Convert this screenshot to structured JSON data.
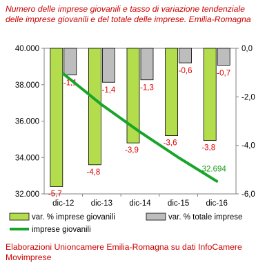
{
  "title_line1": "Numero delle imprese giovanili e tasso di variazione tendenziale",
  "title_line2": "delle imprese giovanili e del totale delle imprese. Emilia-Romagna",
  "source_line1": "Elaborazioni Unioncamere Emilia-Romagna su dati InfoCamere",
  "source_line2": "Movimprese",
  "colors": {
    "bar_giovanili": "#b3dd4d",
    "bar_totale": "#bdbdbd",
    "line_giovanili": "#18a52a",
    "data_label": "#e00000",
    "line_label": "#1a9a1a"
  },
  "chart_data": {
    "type": "bar",
    "categories": [
      "dic-12",
      "dic-13",
      "dic-14",
      "dic-15",
      "dic-16"
    ],
    "series": [
      {
        "name": "var. % imprese giovanili",
        "kind": "bar",
        "axis": "right",
        "values": [
          -5.7,
          -4.8,
          -3.9,
          -3.6,
          -3.8
        ],
        "labels": [
          "-5,7",
          "-4,8",
          "-3,9",
          "-3,6",
          "-3,8"
        ]
      },
      {
        "name": "var. % totale imprese",
        "kind": "bar",
        "axis": "right",
        "values": [
          -1.1,
          -1.4,
          -1.3,
          -0.6,
          -0.7
        ],
        "labels": [
          "-1,1",
          "-1,4",
          "-1,3",
          "-0,6",
          "-0,7"
        ]
      },
      {
        "name": "imprese giovanili",
        "kind": "line",
        "axis": "left",
        "values": [
          38600,
          36900,
          35400,
          34000,
          32694
        ],
        "last_label": "32.694"
      }
    ],
    "left_axis": {
      "ylim": [
        32000,
        40000
      ],
      "ticks": [
        32000,
        34000,
        36000,
        38000,
        40000
      ],
      "tick_labels": [
        "32.000",
        "34.000",
        "36.000",
        "38.000",
        "40.000"
      ]
    },
    "right_axis": {
      "ylim": [
        -6.0,
        0.0
      ],
      "ticks": [
        0.0,
        -2.0,
        -4.0,
        -6.0
      ],
      "tick_labels": [
        "0,0",
        "-2,0",
        "-4,0",
        "-6,0"
      ]
    },
    "legend_position": "bottom",
    "grid": false
  }
}
